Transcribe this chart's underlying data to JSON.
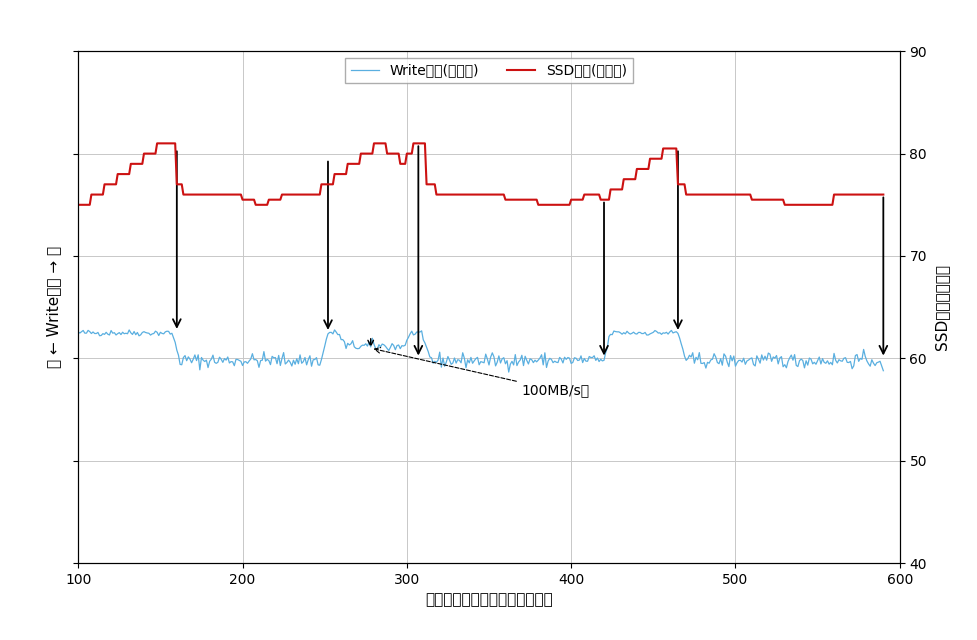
{
  "xlabel": "測定開始からの経過時間（秒）",
  "ylabel_left": "低 ← Write性能 → 高",
  "ylabel_right": "SSD温度（摂氏）",
  "legend_write": "Write性能(左縦軸)",
  "legend_temp": "SSD温度(右縦軸)",
  "annotation_text": "100MB/s強",
  "xlim": [
    100,
    600
  ],
  "ylim_left": [
    40,
    90
  ],
  "ylim_right": [
    40,
    90
  ],
  "xticks": [
    100,
    200,
    300,
    400,
    500,
    600
  ],
  "yticks_right": [
    40,
    50,
    60,
    70,
    80,
    90
  ],
  "write_color": "#5aafe0",
  "temp_color": "#cc1111",
  "arrow_color": "#000000",
  "background_color": "#ffffff",
  "grid_color": "#c8c8c8",
  "high_level": 62.5,
  "low_level": 59.8,
  "mid_level": 61.2,
  "noise_high": 0.15,
  "noise_low": 0.35
}
